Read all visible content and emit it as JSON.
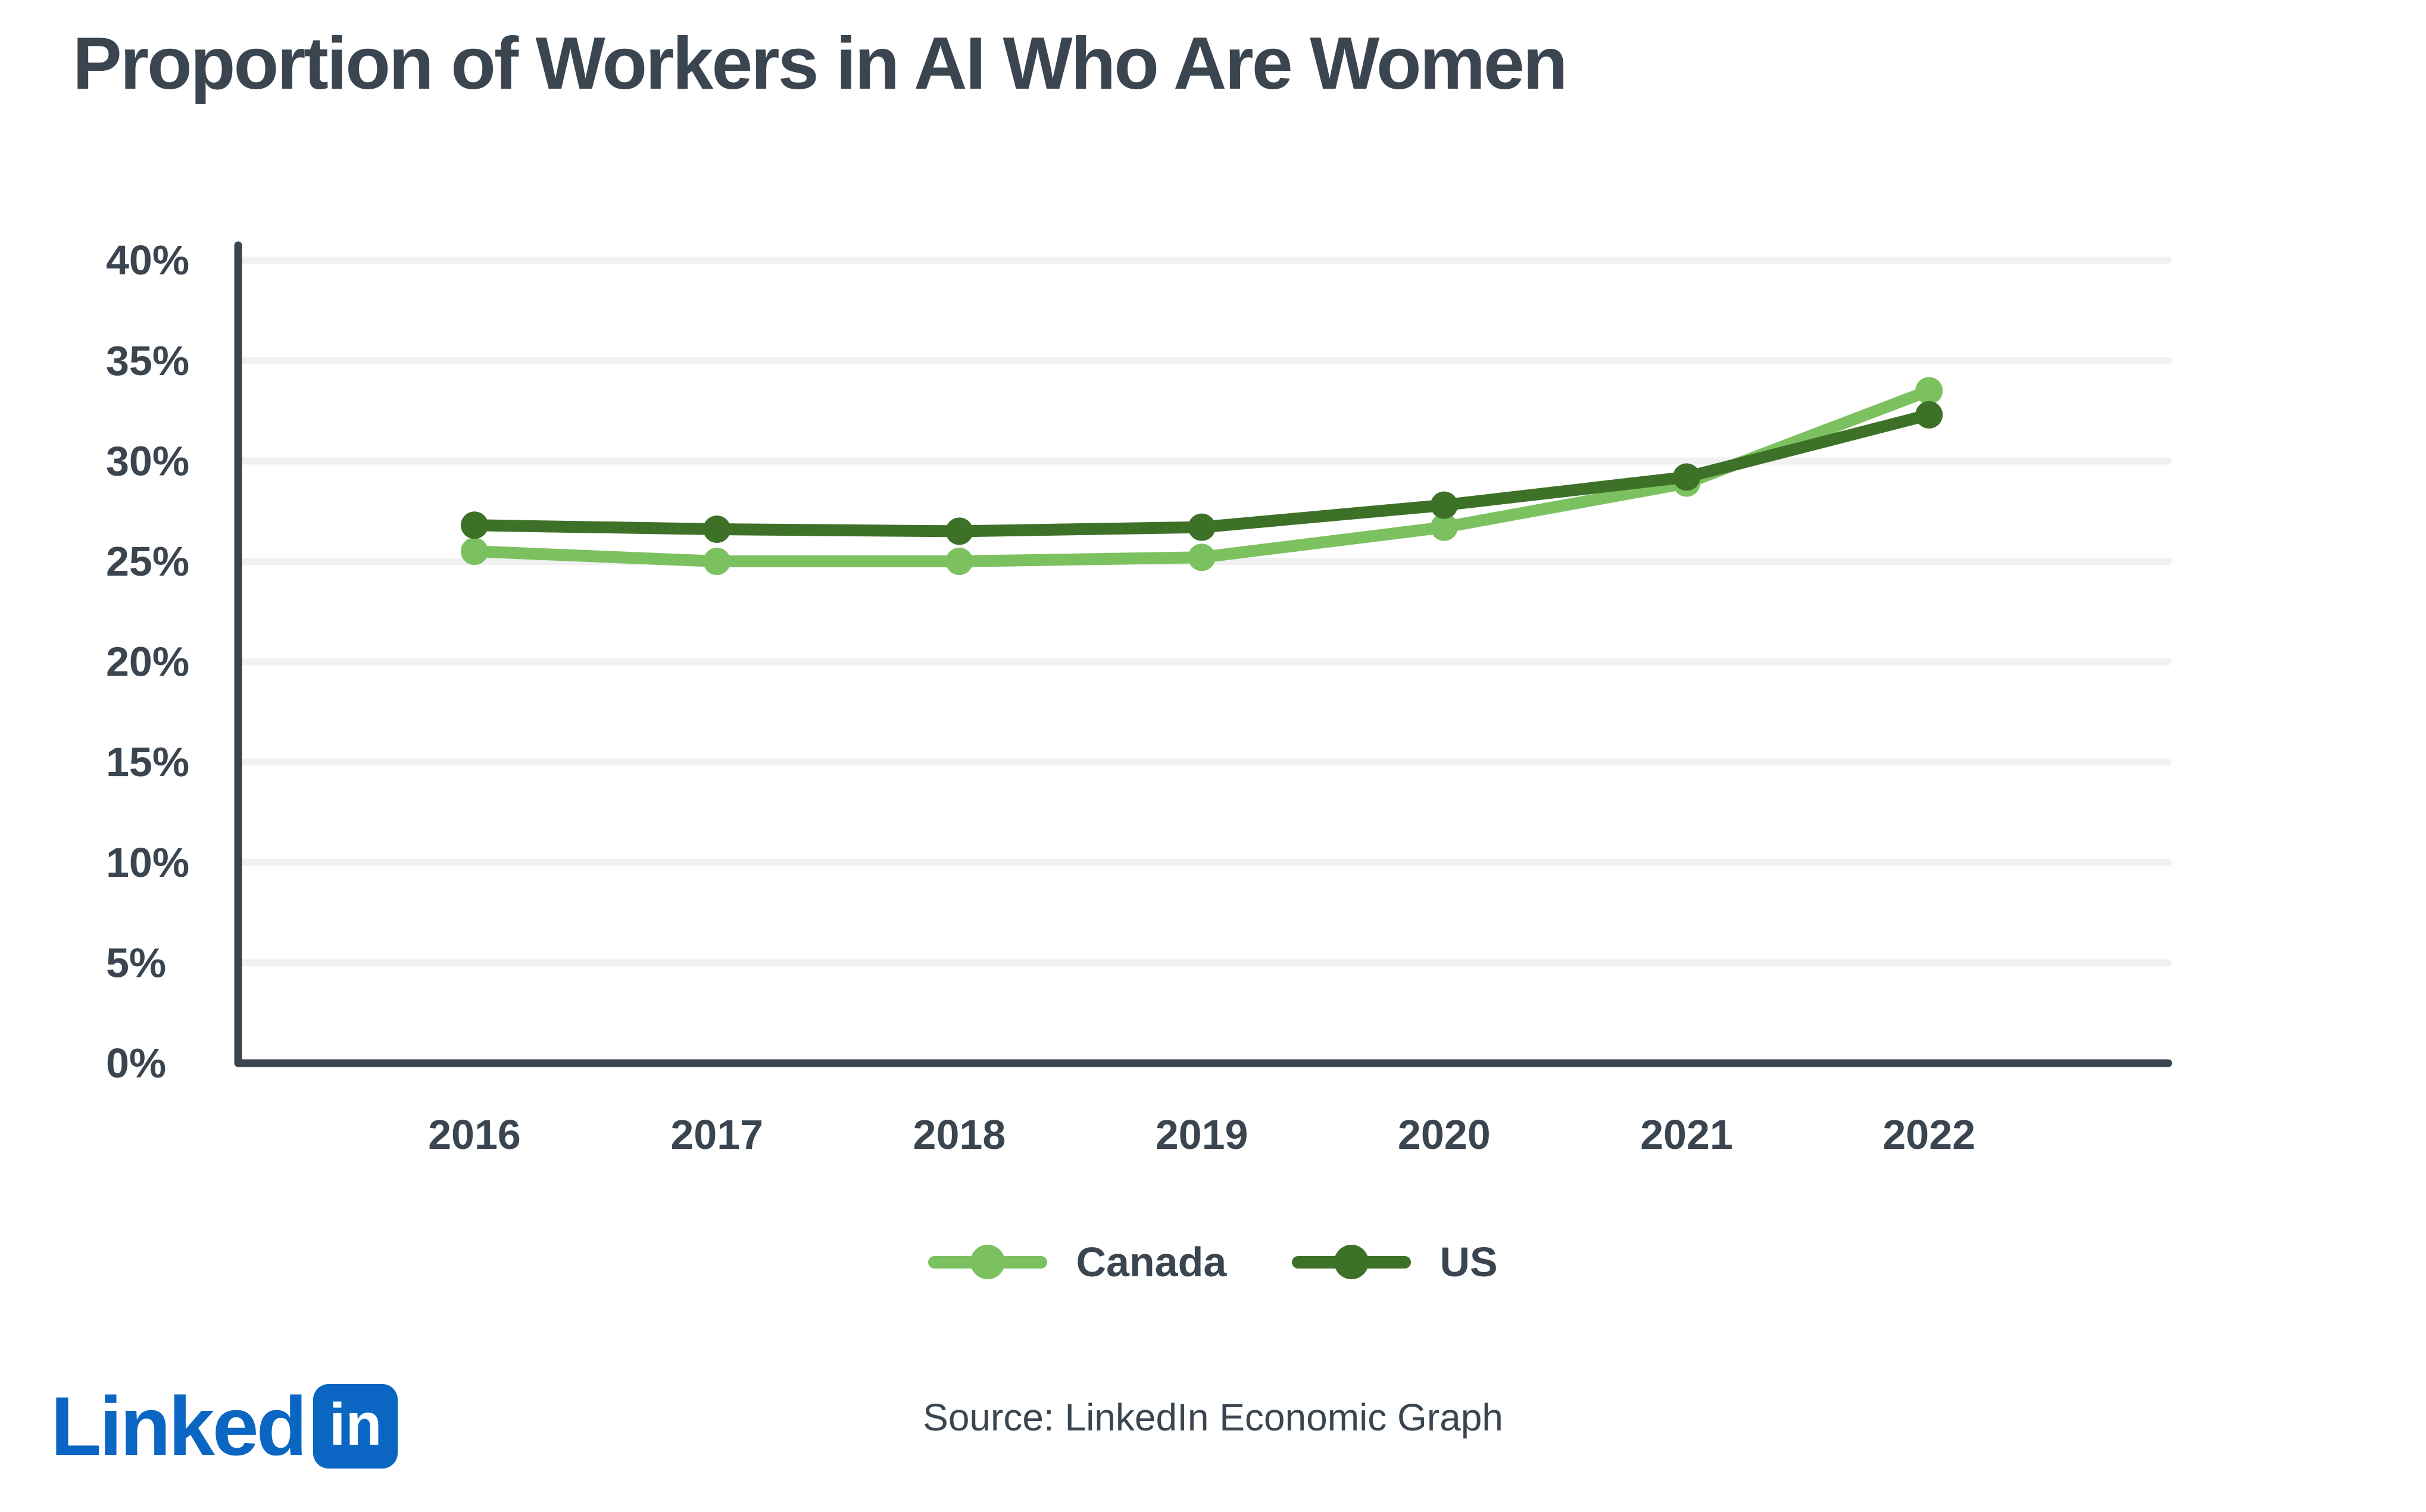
{
  "title": "Proportion of Workers in AI Who Are Women",
  "legend": {
    "items": [
      {
        "label": "Canada"
      },
      {
        "label": "US"
      }
    ]
  },
  "footer": {
    "logo_wordmark": "Linked",
    "logo_badge": "in",
    "source": "Source: LinkedIn Economic Graph"
  },
  "colors": {
    "canada_green": "#7CC15F",
    "us_green": "#3E7128",
    "text_slate": "#3A4550",
    "axis_slate": "#3A4450",
    "gridline_gray": "#F1F1F1",
    "linkedin_blue": "#0A66C2",
    "background": "#FFFFFF"
  },
  "chart_data": {
    "type": "line",
    "title": "Proportion of Workers in AI Who Are Women",
    "x": [
      2016,
      2017,
      2018,
      2019,
      2020,
      2021,
      2022
    ],
    "series": [
      {
        "name": "Canada",
        "color": "#7CC15F",
        "values": [
          25.5,
          25.0,
          25.0,
          25.2,
          26.7,
          28.9,
          33.5
        ]
      },
      {
        "name": "US",
        "color": "#3E7128",
        "values": [
          26.8,
          26.6,
          26.5,
          26.7,
          27.8,
          29.2,
          32.3
        ]
      }
    ],
    "yticks": [
      "0%",
      "5%",
      "10%",
      "15%",
      "20%",
      "25%",
      "30%",
      "35%",
      "40%"
    ],
    "ytick_values": [
      0,
      5,
      10,
      15,
      20,
      25,
      30,
      35,
      40
    ],
    "ylim": [
      0,
      40
    ],
    "xlabel": "",
    "ylabel": "",
    "grid": true,
    "legend_position": "bottom",
    "source": "Source: LinkedIn Economic Graph"
  }
}
